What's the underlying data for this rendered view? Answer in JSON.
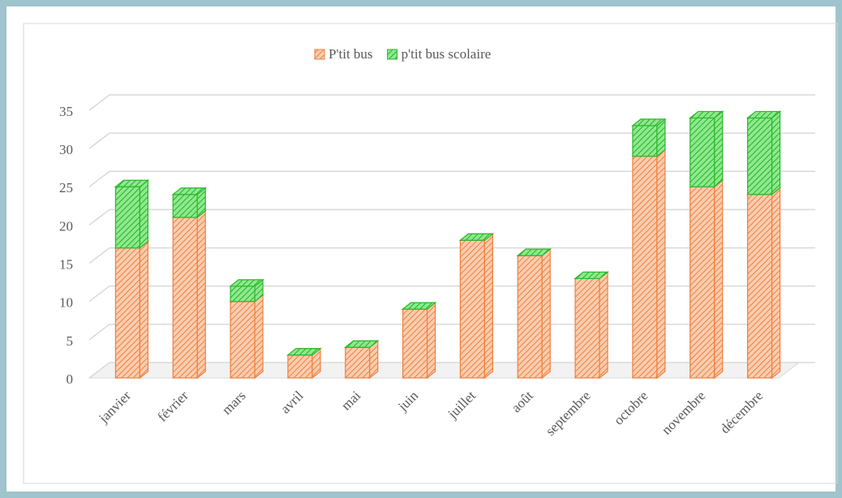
{
  "chart_data": {
    "type": "bar3d_stacked",
    "categories": [
      "janvier",
      "février",
      "mars",
      "avril",
      "mai",
      "juin",
      "juillet",
      "août",
      "septembre",
      "octobre",
      "novembre",
      "décembre"
    ],
    "series": [
      {
        "name": "P'tit bus",
        "color": "#f07f3c",
        "values": [
          17,
          21,
          10,
          3,
          4,
          9,
          18,
          16,
          13,
          29,
          25,
          24
        ]
      },
      {
        "name": "p'tit bus scolaire",
        "color": "#2cb82c",
        "values": [
          8,
          3,
          2,
          0,
          0,
          0,
          0,
          0,
          0,
          4,
          9,
          10
        ]
      }
    ],
    "ylim": [
      0,
      35
    ],
    "yticks": [
      0,
      5,
      10,
      15,
      20,
      25,
      30,
      35
    ],
    "grid": true,
    "legend": "top"
  }
}
